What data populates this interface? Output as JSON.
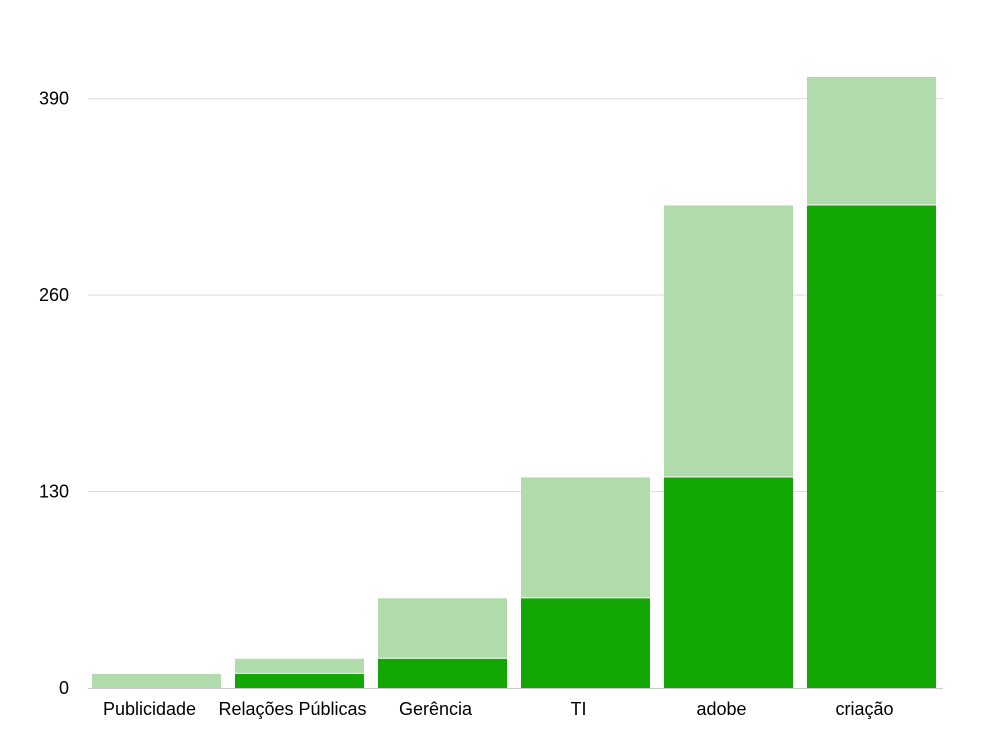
{
  "chart_data": {
    "type": "bar",
    "stacked": true,
    "categories": [
      "Publicidade",
      "Relações Públicas",
      "Gerência",
      "TI",
      "adobe",
      "criação"
    ],
    "series": [
      {
        "values": [
          0,
          10,
          20,
          60,
          140,
          320
        ],
        "color": "#12a703"
      },
      {
        "values": [
          10,
          10,
          40,
          80,
          180,
          85
        ],
        "color": "#b0dbab"
      }
    ],
    "yticks": [
      0,
      130,
      260,
      390
    ],
    "ylim": [
      0,
      405
    ],
    "grid": true,
    "legend": "none"
  }
}
